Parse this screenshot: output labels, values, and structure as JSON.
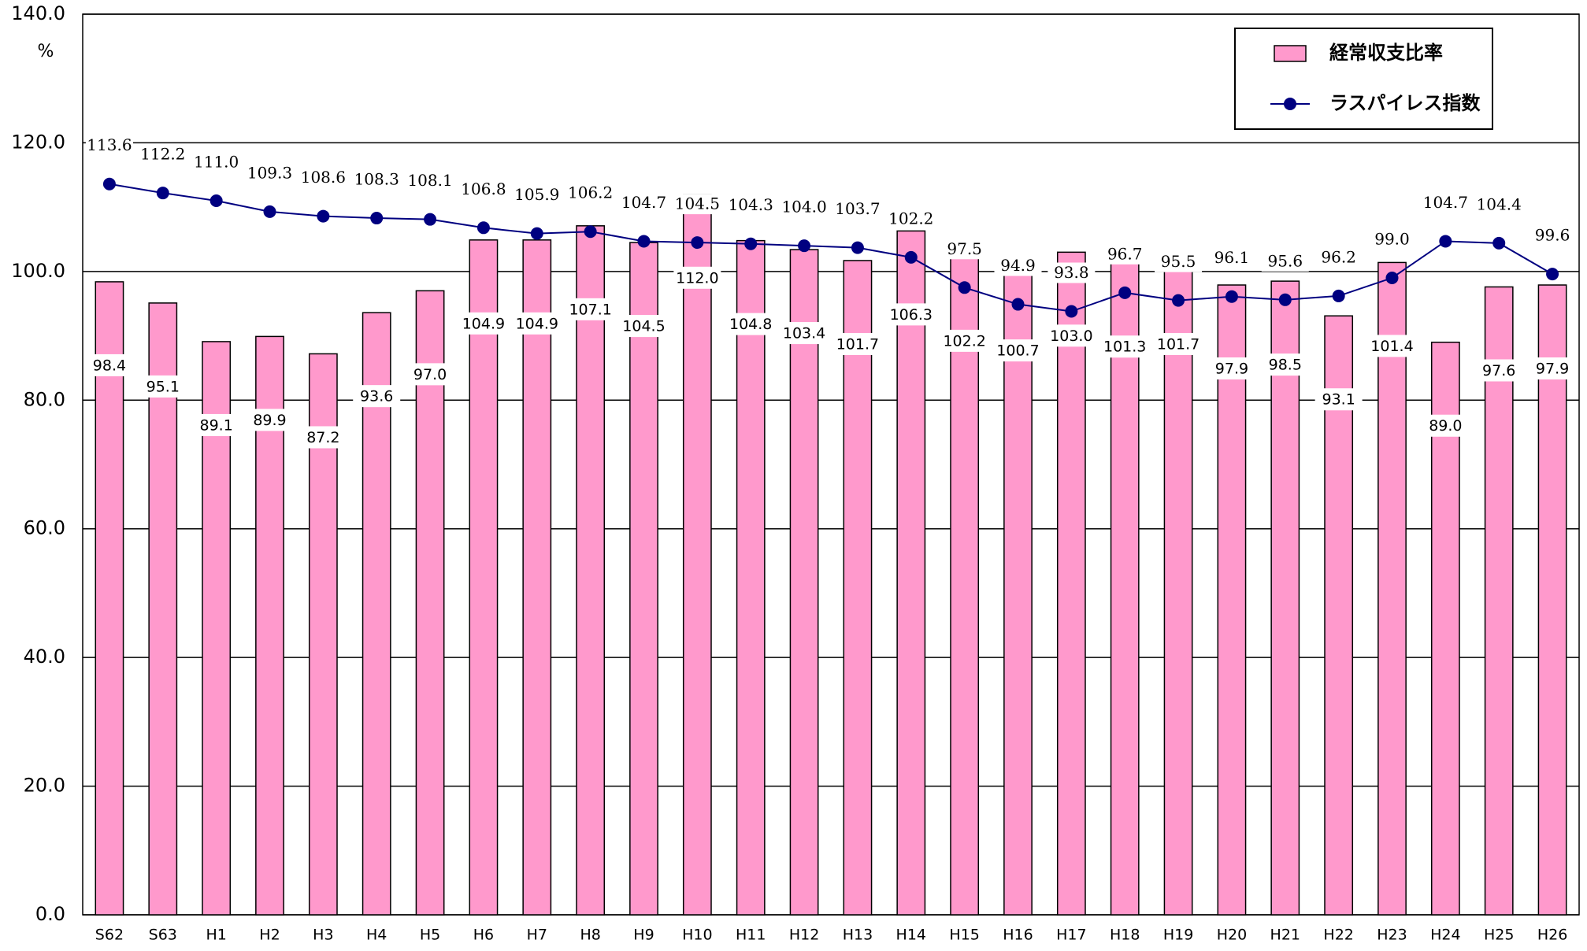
{
  "chart_data": {
    "type": "bar_line",
    "y_unit": "%",
    "categories": [
      "S62",
      "S63",
      "H1",
      "H2",
      "H3",
      "H4",
      "H5",
      "H6",
      "H7",
      "H8",
      "H9",
      "H10",
      "H11",
      "H12",
      "H13",
      "H14",
      "H15",
      "H16",
      "H17",
      "H18",
      "H19",
      "H20",
      "H21",
      "H22",
      "H23",
      "H24",
      "H25",
      "H26"
    ],
    "series": [
      {
        "name": "経常収支比率",
        "type": "bar",
        "color": "#ff99cc",
        "values": [
          98.4,
          95.1,
          89.1,
          89.9,
          87.2,
          93.6,
          97.0,
          104.9,
          104.9,
          107.1,
          104.5,
          112.0,
          104.8,
          103.4,
          101.7,
          106.3,
          102.2,
          100.7,
          103.0,
          101.3,
          101.7,
          97.9,
          98.5,
          93.1,
          101.4,
          89.0,
          97.6,
          97.9
        ],
        "value_labels": [
          "98.4",
          "95.1",
          "89.1",
          "89.9",
          "87.2",
          "93.6",
          "97.0",
          "104.9",
          "104.9",
          "107.1",
          "104.5",
          "112.0",
          "104.8",
          "103.4",
          "101.7",
          "106.3",
          "102.2",
          "100.7",
          "103.0",
          "101.3",
          "101.7",
          "97.9",
          "98.5",
          "93.1",
          "101.4",
          "89.0",
          "97.6",
          "97.9"
        ]
      },
      {
        "name": "ラスパイレス指数",
        "type": "line",
        "color": "#000080",
        "values": [
          113.6,
          112.2,
          111.0,
          109.3,
          108.6,
          108.3,
          108.1,
          106.8,
          105.9,
          106.2,
          104.7,
          104.5,
          104.3,
          104.0,
          103.7,
          102.2,
          97.5,
          94.9,
          93.8,
          96.7,
          95.5,
          96.1,
          95.6,
          96.2,
          99.0,
          104.7,
          104.4,
          99.6
        ],
        "value_labels": [
          "113.6",
          "112.2",
          "111.0",
          "109.3",
          "108.6",
          "108.3",
          "108.1",
          "106.8",
          "105.9",
          "106.2",
          "104.7",
          "104.5",
          "104.3",
          "104.0",
          "103.7",
          "102.2",
          "97.5",
          "94.9",
          "93.8",
          "96.7",
          "95.5",
          "96.1",
          "95.6",
          "96.2",
          "99.0",
          "104.7",
          "104.4",
          "99.6"
        ]
      }
    ],
    "ylim": [
      0,
      140
    ],
    "yticks": [
      {
        "value": 0,
        "label": "0.0"
      },
      {
        "value": 20,
        "label": "20.0"
      },
      {
        "value": 40,
        "label": "40.0"
      },
      {
        "value": 60,
        "label": "60.0"
      },
      {
        "value": 80,
        "label": "80.0"
      },
      {
        "value": 100,
        "label": "100.0"
      },
      {
        "value": 120,
        "label": "120.0"
      },
      {
        "value": 140,
        "label": "140.0"
      }
    ],
    "grid": true,
    "legend": "top-right"
  }
}
